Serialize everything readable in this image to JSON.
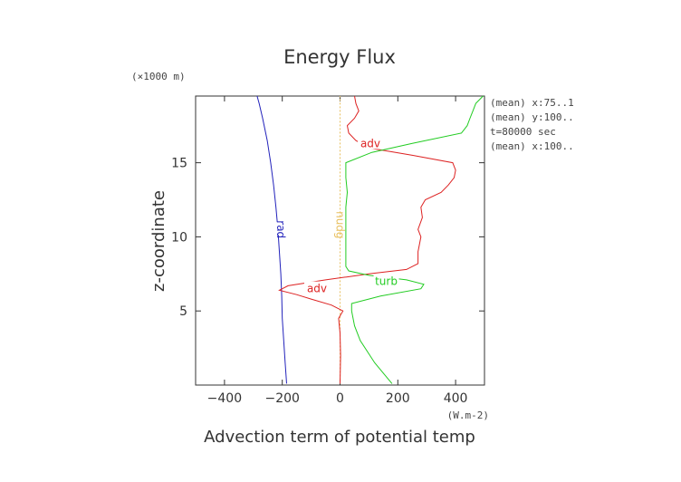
{
  "chart_data": {
    "type": "line",
    "title": "Energy Flux",
    "xlabel": "Advection term of potential temp",
    "ylabel": "z-coordinate",
    "x_unit": "(W.m-2)",
    "y_unit": "(×1000 m)",
    "xlim": [
      -500,
      500
    ],
    "ylim": [
      0,
      19.5
    ],
    "x_ticks": [
      -400,
      -200,
      0,
      200,
      400
    ],
    "x_tick_labels": [
      "−400",
      "−200",
      "0",
      "200",
      "400"
    ],
    "y_ticks": [
      5,
      10,
      15
    ],
    "y_tick_labels": [
      "5",
      "10",
      "15"
    ],
    "info": [
      "(mean) x:75..1",
      "(mean) y:100..",
      "t=80000 sec",
      "(mean) x:100.."
    ],
    "series": [
      {
        "name": "rad",
        "color": "#2222bb",
        "label_at": [
          -205,
          10.5
        ],
        "points": [
          [
            -185,
            0.1
          ],
          [
            -190,
            1.5
          ],
          [
            -195,
            3
          ],
          [
            -200,
            4.5
          ],
          [
            -202,
            6
          ],
          [
            -205,
            7.5
          ],
          [
            -210,
            9
          ],
          [
            -215,
            10.5
          ],
          [
            -222,
            12
          ],
          [
            -230,
            13.5
          ],
          [
            -240,
            15
          ],
          [
            -252,
            16.5
          ],
          [
            -268,
            18
          ],
          [
            -280,
            19
          ],
          [
            -287,
            19.5
          ]
        ]
      },
      {
        "name": "nudg",
        "color": "#e8c060",
        "dashed": true,
        "label_at": [
          0,
          10.8
        ],
        "points": [
          [
            0,
            0.1
          ],
          [
            0,
            19.5
          ]
        ]
      },
      {
        "name": "adv",
        "color": "#dd2222",
        "label_at": [
          105,
          16.3
        ],
        "label2_at": [
          -80,
          6.5
        ],
        "points": [
          [
            0,
            0.1
          ],
          [
            2,
            2
          ],
          [
            0,
            3.5
          ],
          [
            -5,
            4.5
          ],
          [
            10,
            5
          ],
          [
            -30,
            5.4
          ],
          [
            -100,
            5.8
          ],
          [
            -150,
            6.1
          ],
          [
            -210,
            6.4
          ],
          [
            -180,
            6.7
          ],
          [
            -50,
            7.1
          ],
          [
            100,
            7.5
          ],
          [
            230,
            7.8
          ],
          [
            270,
            8.2
          ],
          [
            270,
            9
          ],
          [
            275,
            9.5
          ],
          [
            280,
            10
          ],
          [
            270,
            10.5
          ],
          [
            285,
            11.3
          ],
          [
            280,
            12
          ],
          [
            295,
            12.5
          ],
          [
            350,
            13
          ],
          [
            375,
            13.5
          ],
          [
            395,
            14
          ],
          [
            400,
            14.5
          ],
          [
            390,
            15
          ],
          [
            250,
            15.5
          ],
          [
            100,
            16
          ],
          [
            55,
            16.5
          ],
          [
            30,
            17
          ],
          [
            25,
            17.5
          ],
          [
            50,
            18
          ],
          [
            65,
            18.5
          ],
          [
            55,
            19
          ],
          [
            50,
            19.5
          ]
        ]
      },
      {
        "name": "turb",
        "color": "#22cc22",
        "label_at": [
          160,
          7.0
        ],
        "points": [
          [
            180,
            0.1
          ],
          [
            120,
            1.5
          ],
          [
            70,
            3
          ],
          [
            50,
            4
          ],
          [
            40,
            5
          ],
          [
            40,
            5.5
          ],
          [
            140,
            6
          ],
          [
            280,
            6.5
          ],
          [
            290,
            6.8
          ],
          [
            230,
            7.1
          ],
          [
            100,
            7.4
          ],
          [
            30,
            7.7
          ],
          [
            20,
            8
          ],
          [
            20,
            12
          ],
          [
            25,
            13
          ],
          [
            20,
            14
          ],
          [
            20,
            15
          ],
          [
            110,
            15.7
          ],
          [
            250,
            16.3
          ],
          [
            420,
            17
          ],
          [
            440,
            17.5
          ],
          [
            450,
            18
          ],
          [
            460,
            18.5
          ],
          [
            470,
            19
          ],
          [
            495,
            19.5
          ]
        ]
      }
    ]
  }
}
